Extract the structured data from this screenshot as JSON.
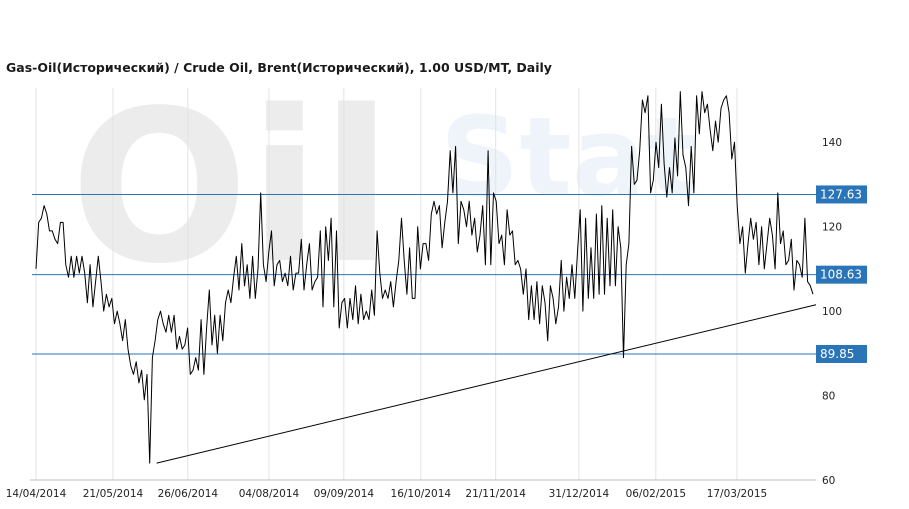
{
  "title": "Gas-Oil(Исторический) / Crude Oil, Brent(Исторический), 1.00 USD/MT, Daily",
  "colors": {
    "line": "#000000",
    "level": "#2a74b8",
    "label_bg": "#2a74b8",
    "grid": "#e3e3e3"
  },
  "chart_data": {
    "type": "line",
    "ylim": [
      60,
      150
    ],
    "yticks": [
      60,
      80,
      100,
      120,
      140
    ],
    "xlim": [
      "2014-04-14",
      "2015-04-24"
    ],
    "xticks": [
      "14/04/2014",
      "21/05/2014",
      "26/06/2014",
      "04/08/2014",
      "09/09/2014",
      "16/10/2014",
      "21/11/2014",
      "31/12/2014",
      "06/02/2015",
      "17/03/2015"
    ],
    "grid": true,
    "levels": [
      {
        "value": 127.63,
        "label": "127.63"
      },
      {
        "value": 108.63,
        "label": "108.63"
      },
      {
        "value": 89.85,
        "label": "89.85"
      }
    ],
    "trendline": {
      "x": [
        "2014-06-11",
        "2015-04-24"
      ],
      "y": [
        64.0,
        101.5
      ]
    },
    "series": [
      {
        "values": [
          [
            0,
            110
          ],
          [
            1,
            121
          ],
          [
            2,
            122
          ],
          [
            3,
            125
          ],
          [
            4,
            123
          ],
          [
            5,
            119
          ],
          [
            6,
            119
          ],
          [
            7,
            117
          ],
          [
            8,
            116
          ],
          [
            9,
            121
          ],
          [
            10,
            121
          ],
          [
            11,
            111
          ],
          [
            12,
            108
          ],
          [
            13,
            113
          ],
          [
            14,
            108
          ],
          [
            15,
            113
          ],
          [
            16,
            109
          ],
          [
            17,
            113
          ],
          [
            18,
            109
          ],
          [
            19,
            102
          ],
          [
            20,
            111
          ],
          [
            21,
            101
          ],
          [
            22,
            107
          ],
          [
            23,
            113
          ],
          [
            24,
            107
          ],
          [
            25,
            100
          ],
          [
            26,
            104
          ],
          [
            27,
            101
          ],
          [
            28,
            103
          ],
          [
            29,
            97
          ],
          [
            30,
            100
          ],
          [
            31,
            97
          ],
          [
            32,
            93
          ],
          [
            33,
            98
          ],
          [
            34,
            91
          ],
          [
            35,
            87
          ],
          [
            36,
            85
          ],
          [
            37,
            88
          ],
          [
            38,
            83
          ],
          [
            39,
            86
          ],
          [
            40,
            79
          ],
          [
            41,
            85
          ],
          [
            42,
            64
          ],
          [
            43,
            89
          ],
          [
            44,
            93
          ],
          [
            45,
            98
          ],
          [
            46,
            100
          ],
          [
            47,
            97
          ],
          [
            48,
            95
          ],
          [
            49,
            99
          ],
          [
            50,
            95
          ],
          [
            51,
            99
          ],
          [
            52,
            91
          ],
          [
            53,
            94
          ],
          [
            54,
            91
          ],
          [
            55,
            92
          ],
          [
            56,
            96
          ],
          [
            57,
            85
          ],
          [
            58,
            86
          ],
          [
            59,
            89
          ],
          [
            60,
            86
          ],
          [
            61,
            98
          ],
          [
            62,
            85
          ],
          [
            63,
            96
          ],
          [
            64,
            105
          ],
          [
            65,
            92
          ],
          [
            66,
            99
          ],
          [
            67,
            90
          ],
          [
            68,
            99
          ],
          [
            69,
            93
          ],
          [
            70,
            102
          ],
          [
            71,
            105
          ],
          [
            72,
            102
          ],
          [
            73,
            108
          ],
          [
            74,
            113
          ],
          [
            75,
            105
          ],
          [
            76,
            116
          ],
          [
            77,
            106
          ],
          [
            78,
            111
          ],
          [
            79,
            103
          ],
          [
            80,
            113
          ],
          [
            81,
            103
          ],
          [
            82,
            110
          ],
          [
            83,
            128
          ],
          [
            84,
            111
          ],
          [
            85,
            107
          ],
          [
            86,
            114
          ],
          [
            87,
            119
          ],
          [
            88,
            106
          ],
          [
            89,
            111
          ],
          [
            90,
            112
          ],
          [
            91,
            107
          ],
          [
            92,
            109
          ],
          [
            93,
            106
          ],
          [
            94,
            113
          ],
          [
            95,
            105
          ],
          [
            96,
            109
          ],
          [
            97,
            109
          ],
          [
            98,
            117
          ],
          [
            99,
            105
          ],
          [
            100,
            111
          ],
          [
            101,
            116
          ],
          [
            102,
            105
          ],
          [
            103,
            107
          ],
          [
            104,
            108
          ],
          [
            105,
            119
          ],
          [
            106,
            101
          ],
          [
            107,
            120
          ],
          [
            108,
            112
          ],
          [
            109,
            122
          ],
          [
            110,
            101
          ],
          [
            111,
            119
          ],
          [
            112,
            96
          ],
          [
            113,
            102
          ],
          [
            114,
            103
          ],
          [
            115,
            96
          ],
          [
            116,
            103
          ],
          [
            117,
            98
          ],
          [
            118,
            106
          ],
          [
            119,
            97
          ],
          [
            120,
            104
          ],
          [
            121,
            98
          ],
          [
            122,
            100
          ],
          [
            123,
            98
          ],
          [
            124,
            105
          ],
          [
            125,
            99
          ],
          [
            126,
            119
          ],
          [
            127,
            109
          ],
          [
            128,
            103
          ],
          [
            129,
            105
          ],
          [
            130,
            103
          ],
          [
            131,
            107
          ],
          [
            132,
            101
          ],
          [
            133,
            107
          ],
          [
            134,
            112
          ],
          [
            135,
            122
          ],
          [
            136,
            112
          ],
          [
            137,
            104
          ],
          [
            138,
            115
          ],
          [
            139,
            103
          ],
          [
            140,
            103
          ],
          [
            141,
            120
          ],
          [
            142,
            110
          ],
          [
            143,
            116
          ],
          [
            144,
            116
          ],
          [
            145,
            112
          ],
          [
            146,
            123
          ],
          [
            147,
            126
          ],
          [
            148,
            123
          ],
          [
            149,
            125
          ],
          [
            150,
            115
          ],
          [
            151,
            121
          ],
          [
            152,
            126
          ],
          [
            153,
            138
          ],
          [
            154,
            128
          ],
          [
            155,
            139
          ],
          [
            156,
            116
          ],
          [
            157,
            126
          ],
          [
            158,
            124
          ],
          [
            159,
            120
          ],
          [
            160,
            126
          ],
          [
            161,
            118
          ],
          [
            162,
            122
          ],
          [
            163,
            114
          ],
          [
            164,
            118
          ],
          [
            165,
            125
          ],
          [
            166,
            111
          ],
          [
            167,
            138
          ],
          [
            168,
            111
          ],
          [
            169,
            128
          ],
          [
            170,
            126
          ],
          [
            171,
            116
          ],
          [
            172,
            118
          ],
          [
            173,
            111
          ],
          [
            174,
            124
          ],
          [
            175,
            118
          ],
          [
            176,
            119
          ],
          [
            177,
            111
          ],
          [
            178,
            112
          ],
          [
            179,
            110
          ],
          [
            180,
            104
          ],
          [
            181,
            110
          ],
          [
            182,
            98
          ],
          [
            183,
            106
          ],
          [
            184,
            98
          ],
          [
            185,
            107
          ],
          [
            186,
            97
          ],
          [
            187,
            106
          ],
          [
            188,
            102
          ],
          [
            189,
            93
          ],
          [
            190,
            106
          ],
          [
            191,
            103
          ],
          [
            192,
            97
          ],
          [
            193,
            101
          ],
          [
            194,
            112
          ],
          [
            195,
            100
          ],
          [
            196,
            108
          ],
          [
            197,
            103
          ],
          [
            198,
            111
          ],
          [
            199,
            103
          ],
          [
            200,
            114
          ],
          [
            201,
            124
          ],
          [
            202,
            100
          ],
          [
            203,
            122
          ],
          [
            204,
            103
          ],
          [
            205,
            115
          ],
          [
            206,
            103
          ],
          [
            207,
            123
          ],
          [
            208,
            104
          ],
          [
            209,
            125
          ],
          [
            210,
            104
          ],
          [
            211,
            122
          ],
          [
            212,
            106
          ],
          [
            213,
            124
          ],
          [
            214,
            106
          ],
          [
            215,
            120
          ],
          [
            216,
            115
          ],
          [
            217,
            89
          ],
          [
            218,
            111
          ],
          [
            219,
            116
          ],
          [
            220,
            139
          ],
          [
            221,
            130
          ],
          [
            222,
            131
          ],
          [
            223,
            138
          ],
          [
            224,
            150
          ],
          [
            225,
            147
          ],
          [
            226,
            151
          ],
          [
            227,
            128
          ],
          [
            228,
            131
          ],
          [
            229,
            140
          ],
          [
            230,
            134
          ],
          [
            231,
            149
          ],
          [
            232,
            135
          ],
          [
            233,
            127
          ],
          [
            234,
            134
          ],
          [
            235,
            128
          ],
          [
            236,
            141
          ],
          [
            237,
            132
          ],
          [
            238,
            152
          ],
          [
            239,
            137
          ],
          [
            240,
            134
          ],
          [
            241,
            125
          ],
          [
            242,
            139
          ],
          [
            243,
            128
          ],
          [
            244,
            151
          ],
          [
            245,
            142
          ],
          [
            246,
            152
          ],
          [
            247,
            147
          ],
          [
            248,
            149
          ],
          [
            249,
            143
          ],
          [
            250,
            138
          ],
          [
            251,
            145
          ],
          [
            252,
            140
          ],
          [
            253,
            148
          ],
          [
            254,
            150
          ],
          [
            255,
            151
          ],
          [
            256,
            147
          ],
          [
            257,
            136
          ],
          [
            258,
            140
          ],
          [
            259,
            125
          ],
          [
            260,
            116
          ],
          [
            261,
            120
          ],
          [
            262,
            109
          ],
          [
            263,
            116
          ],
          [
            264,
            122
          ],
          [
            265,
            117
          ],
          [
            266,
            121
          ],
          [
            267,
            111
          ],
          [
            268,
            120
          ],
          [
            269,
            110
          ],
          [
            270,
            116
          ],
          [
            271,
            122
          ],
          [
            272,
            118
          ],
          [
            273,
            110
          ],
          [
            274,
            128
          ],
          [
            275,
            116
          ],
          [
            276,
            119
          ],
          [
            277,
            111
          ],
          [
            278,
            112
          ],
          [
            279,
            117
          ],
          [
            280,
            105
          ],
          [
            281,
            112
          ],
          [
            282,
            111
          ],
          [
            283,
            108
          ],
          [
            284,
            122
          ],
          [
            285,
            107
          ],
          [
            286,
            106
          ],
          [
            287,
            104
          ]
        ]
      }
    ]
  }
}
